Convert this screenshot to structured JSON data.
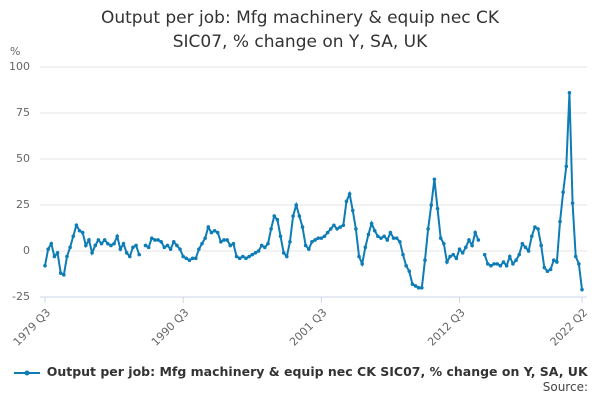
{
  "chart_data": {
    "type": "line",
    "title": "Output per job: Mfg machinery & equip nec CK SIC07, % change on Y, SA, UK",
    "y_label": "%",
    "footer": "Source:",
    "grid": true,
    "legend": "bottom",
    "ylim": [
      -25,
      100
    ],
    "yticks": [
      -25,
      0,
      25,
      50,
      75,
      100
    ],
    "categories": [
      "1979 Q3",
      null,
      null,
      null,
      null,
      null,
      null,
      null,
      null,
      null,
      null,
      null,
      null,
      null,
      null,
      null,
      null,
      null,
      null,
      null,
      null,
      null,
      null,
      null,
      null,
      null,
      null,
      null,
      null,
      null,
      null,
      null,
      null,
      null,
      null,
      null,
      null,
      null,
      null,
      null,
      null,
      null,
      null,
      null,
      "1990 Q3",
      null,
      null,
      null,
      null,
      null,
      null,
      null,
      null,
      null,
      null,
      null,
      null,
      null,
      null,
      null,
      null,
      null,
      null,
      null,
      null,
      null,
      null,
      null,
      null,
      null,
      null,
      null,
      null,
      null,
      null,
      null,
      null,
      null,
      null,
      null,
      null,
      null,
      null,
      null,
      null,
      null,
      null,
      null,
      "2001 Q3",
      null,
      null,
      null,
      null,
      null,
      null,
      null,
      null,
      null,
      null,
      null,
      null,
      null,
      null,
      null,
      null,
      null,
      null,
      null,
      null,
      null,
      null,
      null,
      null,
      null,
      null,
      null,
      null,
      null,
      null,
      null,
      null,
      null,
      null,
      null,
      null,
      null,
      null,
      null,
      null,
      null,
      null,
      null,
      "2012 Q3",
      null,
      null,
      null,
      null,
      null,
      null,
      null,
      null,
      null,
      null,
      null,
      null,
      null,
      null,
      null,
      null,
      null,
      null,
      null,
      null,
      null,
      null,
      null,
      null,
      null,
      null,
      null,
      null,
      null,
      null,
      null,
      null,
      null,
      null,
      null,
      null,
      null,
      null,
      "2022 Q2"
    ],
    "series": [
      {
        "name": "Output per job: Mfg machinery & equip nec CK SIC07, % change on Y, SA, UK",
        "color": "#0e7cb5",
        "values": [
          -8,
          1,
          4,
          -3,
          -1,
          -12,
          -13,
          -3,
          2,
          8,
          14,
          11,
          10,
          3,
          6,
          -1,
          3,
          6,
          4,
          6,
          4,
          3,
          4,
          8,
          1,
          4,
          -1,
          -3,
          2,
          3,
          -2,
          null,
          3,
          2,
          7,
          6,
          6,
          5,
          2,
          3,
          1,
          5,
          3,
          1,
          -3,
          -4,
          -5,
          -4,
          -4,
          1,
          4,
          7,
          13,
          10,
          11,
          10,
          5,
          6,
          6,
          3,
          4,
          -3,
          -4,
          -3,
          -4,
          -3,
          -2,
          -1,
          0,
          3,
          2,
          4,
          12,
          19,
          17,
          8,
          -1,
          -3,
          5,
          19,
          25,
          19,
          13,
          3,
          1,
          5,
          6,
          7,
          7,
          8,
          10,
          12,
          14,
          12,
          13,
          14,
          27,
          31,
          22,
          12,
          -3,
          -7,
          2,
          9,
          15,
          11,
          8,
          7,
          8,
          6,
          10,
          7,
          7,
          5,
          -2,
          -8,
          -11,
          -18,
          -19,
          -20,
          -20,
          -5,
          12,
          25,
          39,
          23,
          7,
          4,
          -6,
          -3,
          -2,
          -4,
          1,
          -1,
          2,
          6,
          3,
          10,
          6,
          null,
          -2,
          -7,
          -8,
          -7,
          -7,
          -8,
          -6,
          -8,
          -3,
          -7,
          -5,
          -2,
          4,
          2,
          0,
          8,
          13,
          12,
          3,
          -9,
          -11,
          -10,
          -5,
          -6,
          16,
          32,
          46,
          86,
          26,
          -3,
          -7,
          -21
        ]
      }
    ]
  }
}
